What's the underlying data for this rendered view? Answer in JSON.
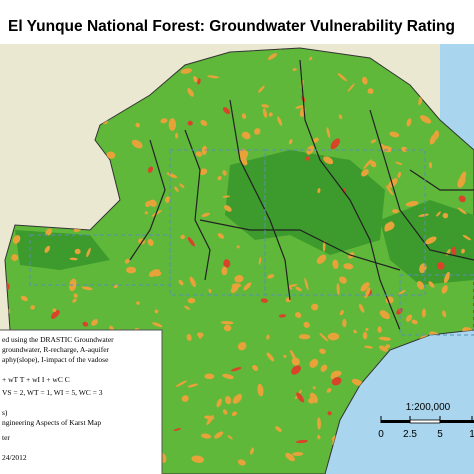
{
  "title": "El Yunque National Forest: Groundwater Vulnerability Rating",
  "legend": {
    "lines": [
      "ed using the DRASTIC Groundwater",
      "groundwater, R-recharge, A-aquifer",
      "aphy(slope), I-impact of the vadose",
      "+ wT T + wI I + wC C",
      "VS = 2, WT = 1, WI = 5, WC = 3",
      "s)",
      "ngineering Aspects of Karst Map",
      "ter",
      "24/2012"
    ]
  },
  "scale": {
    "ratio": "1:200,000",
    "labels": [
      "0",
      "2.5",
      "5",
      "1"
    ]
  }
}
